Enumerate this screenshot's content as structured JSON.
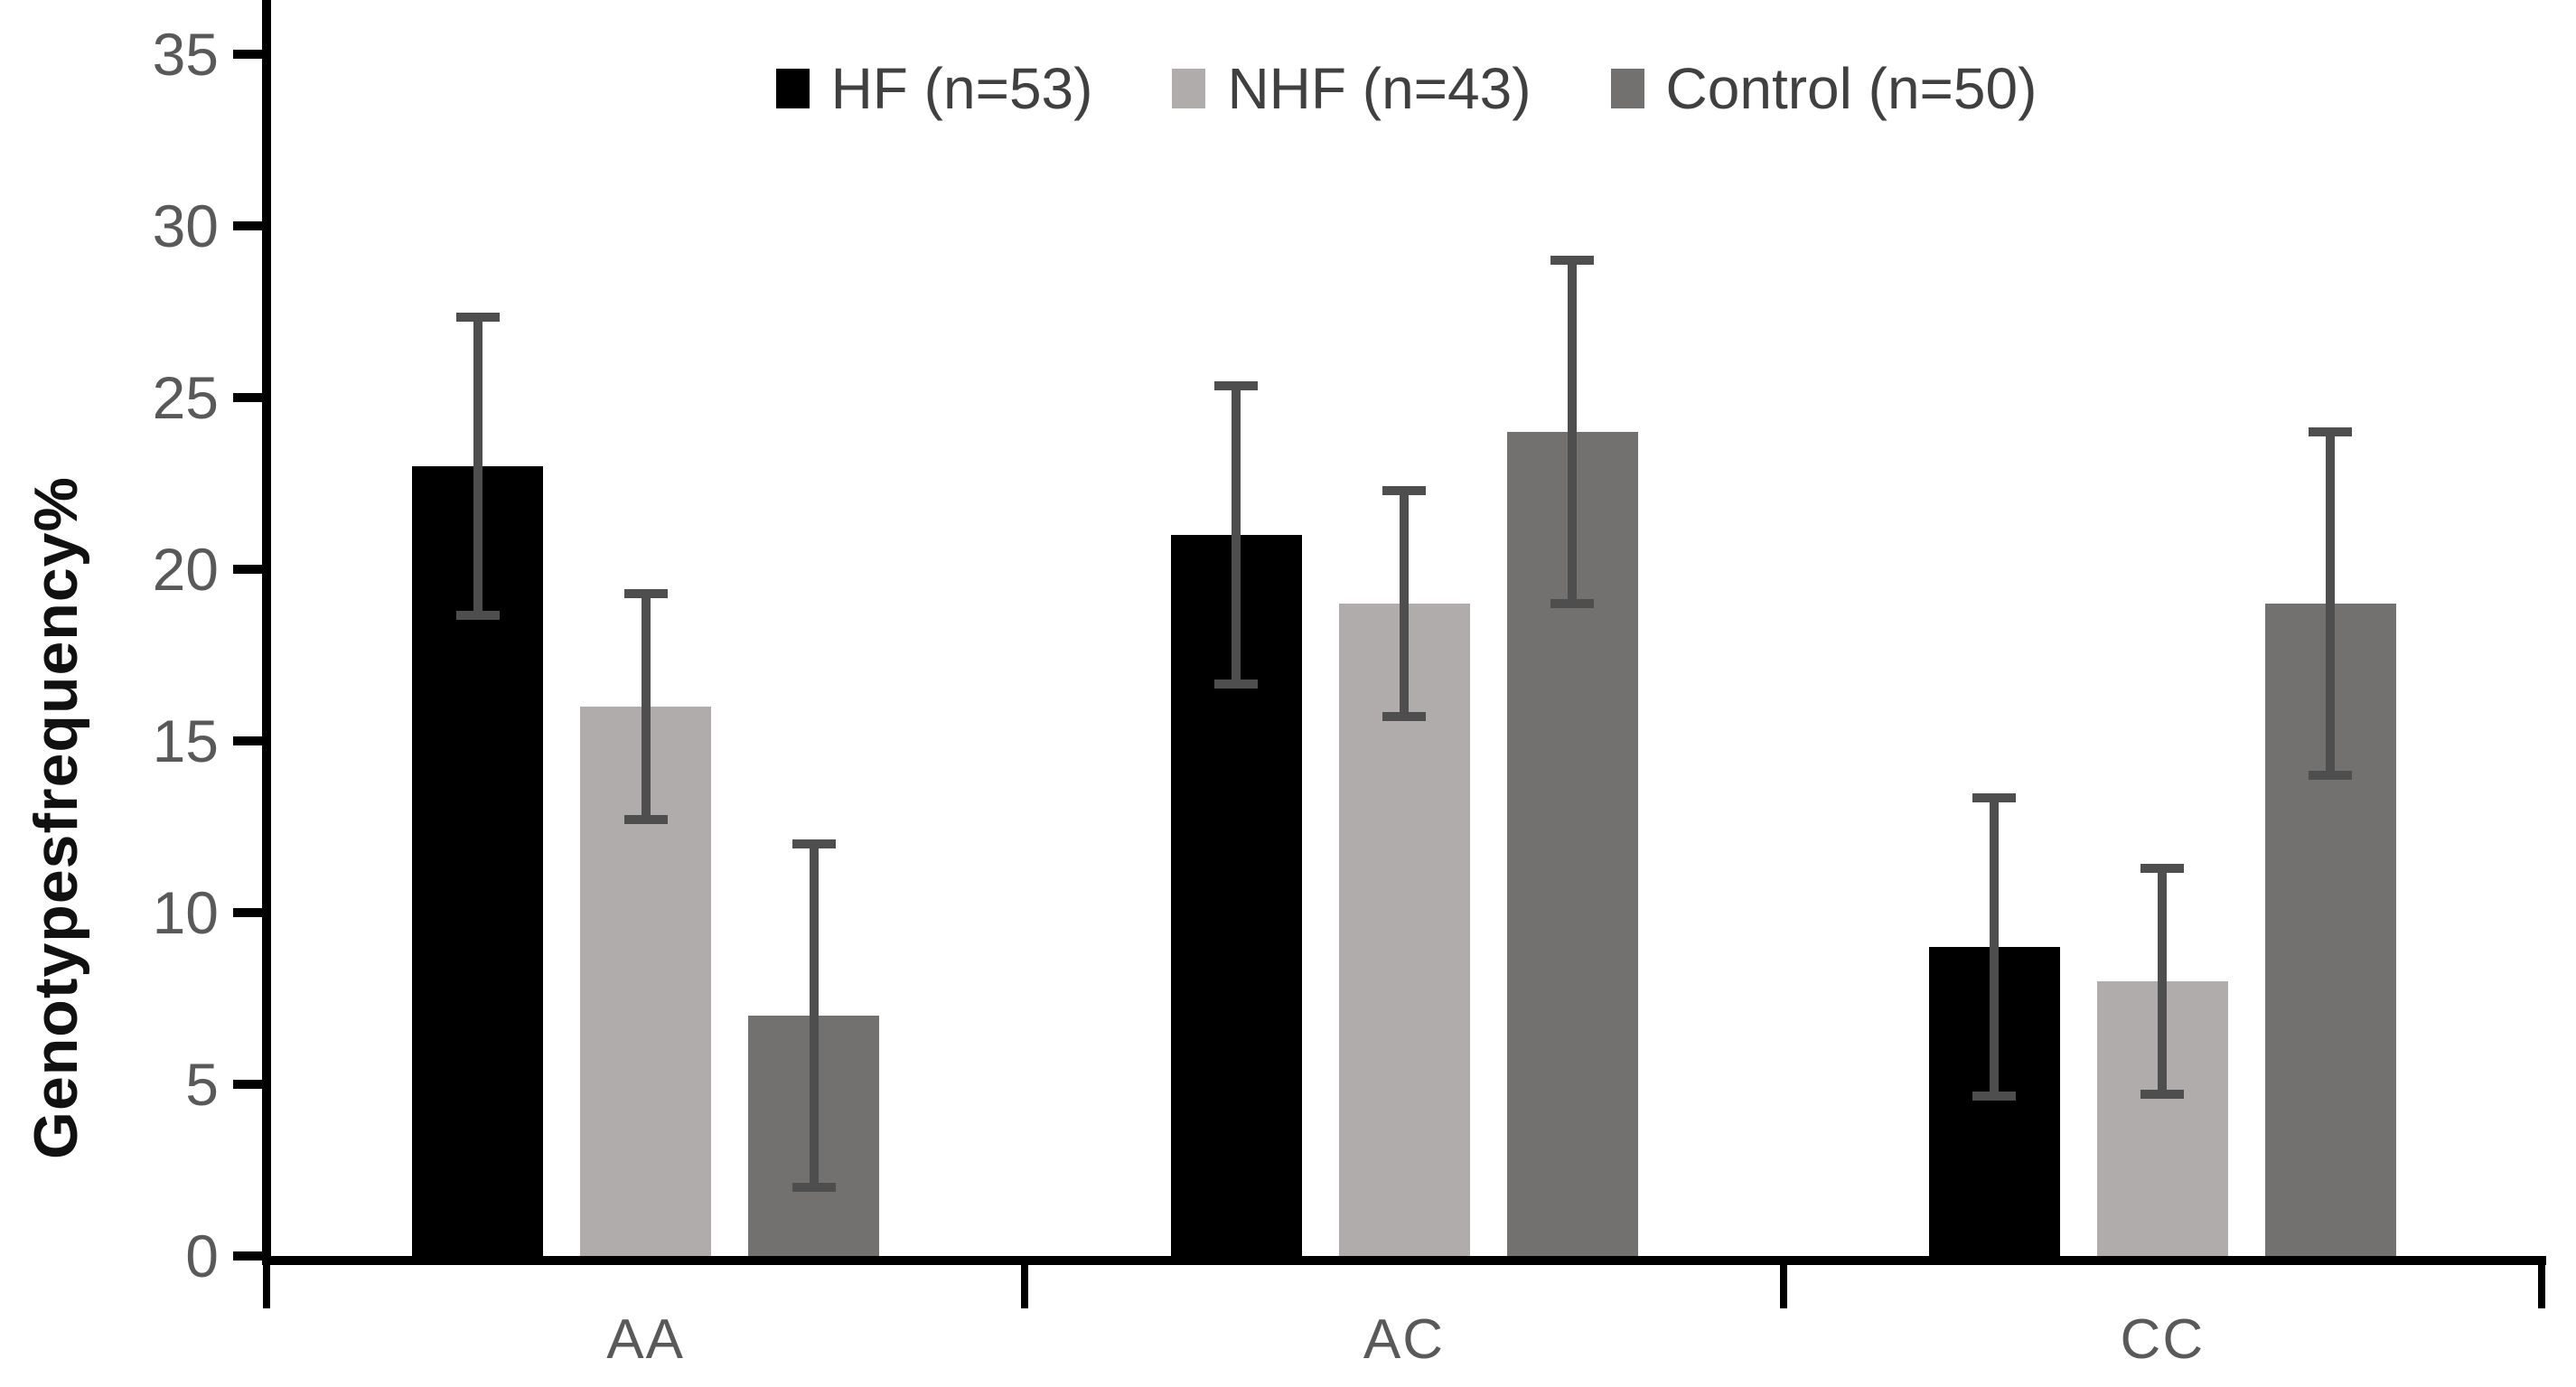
{
  "chart_data": {
    "type": "bar",
    "title": "",
    "ylabel": "Genotypesfrequency%",
    "xlabel": "",
    "ylim": [
      0,
      35
    ],
    "yticks": [
      0,
      5,
      10,
      15,
      20,
      25,
      30,
      35
    ],
    "categories": [
      "AA",
      "AC",
      "CC"
    ],
    "grid": false,
    "legend_position": "top-center",
    "background_color": "#ffffff",
    "axis_color": "#000000",
    "tick_label_color": "#595959",
    "legend_text_color": "#404040",
    "error_bar_color": "#4e4e4e",
    "series": [
      {
        "name": "HF (n=53)",
        "color": "#000000",
        "values": [
          23,
          21,
          9
        ],
        "errors": [
          4.35,
          4.35,
          4.35
        ]
      },
      {
        "name": "NHF (n=43)",
        "color": "#afacab",
        "values": [
          16,
          19,
          8
        ],
        "errors": [
          3.3,
          3.3,
          3.3
        ]
      },
      {
        "name": "Control (n=50)",
        "color": "#737070",
        "values": [
          7,
          24,
          19
        ],
        "errors": [
          5,
          5,
          5
        ]
      }
    ]
  }
}
